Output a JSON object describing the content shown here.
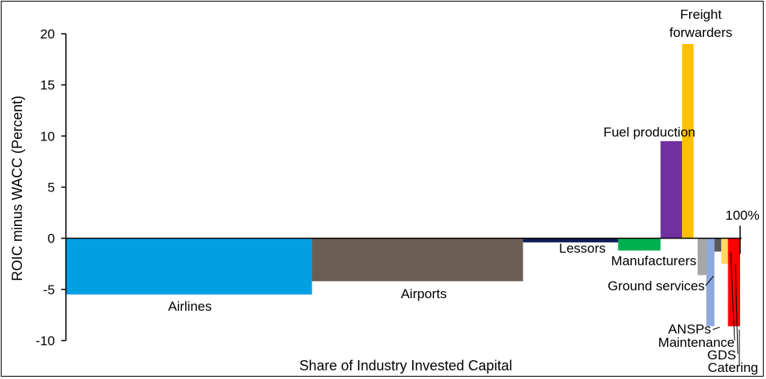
{
  "chart_data": {
    "type": "bar",
    "variant": "variable-width",
    "title": "",
    "xlabel": "Share of Industry Invested Capital",
    "ylabel": "ROIC minus WACC (Percent)",
    "ylim": [
      -10,
      20
    ],
    "yticks": [
      20,
      15,
      10,
      5,
      0,
      -5,
      -10
    ],
    "x_end_label": "100%",
    "grid": false,
    "legend": "none",
    "segments": [
      {
        "label": "Airlines",
        "x0": 0.0,
        "x1": 36.5,
        "value": -5.5,
        "color": "#00A0E3"
      },
      {
        "label": "Airports",
        "x0": 36.5,
        "x1": 67.8,
        "value": -4.2,
        "color": "#6B5E55"
      },
      {
        "label": "Lessors",
        "x0": 67.8,
        "x1": 81.9,
        "value": -0.4,
        "color": "#0F1F5C"
      },
      {
        "label": "Manufacturers",
        "x0": 81.9,
        "x1": 88.2,
        "value": -1.2,
        "color": "#00B050"
      },
      {
        "label": "Fuel production",
        "x0": 88.2,
        "x1": 91.4,
        "value": 9.5,
        "color": "#7030A0"
      },
      {
        "label": "Freight forwarders",
        "x0": 91.4,
        "x1": 93.1,
        "value": 19.0,
        "color": "#FFC000"
      },
      {
        "label": "Ground services",
        "x0": 93.7,
        "x1": 95.0,
        "value": -3.6,
        "color": "#A6A6A6"
      },
      {
        "label": "ANSPs",
        "x0": 95.0,
        "x1": 96.2,
        "value": -8.6,
        "color": "#8EA9DB"
      },
      {
        "label": "Maintenance",
        "x0": 96.2,
        "x1": 97.2,
        "value": -1.3,
        "color": "#595959"
      },
      {
        "label": "GDS",
        "x0": 97.2,
        "x1": 98.2,
        "value": -2.5,
        "color": "#FFD966"
      },
      {
        "label": "Catering",
        "x0": 98.2,
        "x1": 100.0,
        "value": -8.6,
        "color": "#FF0000"
      }
    ]
  }
}
